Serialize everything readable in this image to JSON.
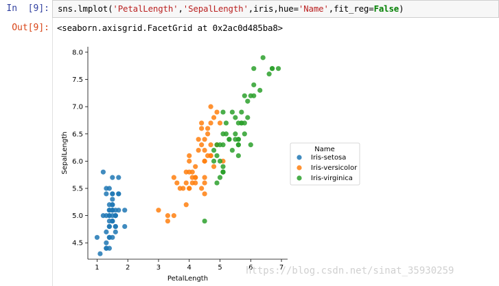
{
  "cell_in": {
    "prompt": "In  [9]:",
    "code_parts": [
      {
        "t": "sns.lmplot(",
        "c": "plain"
      },
      {
        "t": "'PetalLength'",
        "c": "str"
      },
      {
        "t": ",",
        "c": "plain"
      },
      {
        "t": "'SepalLength'",
        "c": "str"
      },
      {
        "t": ",iris,hue=",
        "c": "plain"
      },
      {
        "t": "'Name'",
        "c": "str"
      },
      {
        "t": ",fit_reg=",
        "c": "plain"
      },
      {
        "t": "False",
        "c": "kw"
      },
      {
        "t": ")",
        "c": "plain"
      }
    ]
  },
  "cell_out": {
    "prompt": "Out[9]:",
    "repr": "<seaborn.axisgrid.FacetGrid at 0x2ac0d485ba8>"
  },
  "watermark": "https://blog.csdn.net/sinat_35930259",
  "chart_data": {
    "type": "scatter",
    "xlabel": "PetalLength",
    "ylabel": "SepalLength",
    "xlim": [
      0.7,
      7.2
    ],
    "ylim": [
      4.2,
      8.1
    ],
    "xticks": [
      1,
      2,
      3,
      4,
      5,
      6,
      7
    ],
    "yticks": [
      4.5,
      5.0,
      5.5,
      6.0,
      6.5,
      7.0,
      7.5,
      8.0
    ],
    "legend": {
      "title": "Name",
      "placement": "right"
    },
    "series": [
      {
        "name": "Iris-setosa",
        "color": "#1f77b4",
        "points": [
          [
            1.4,
            5.1
          ],
          [
            1.4,
            4.9
          ],
          [
            1.3,
            4.7
          ],
          [
            1.5,
            4.6
          ],
          [
            1.4,
            5.0
          ],
          [
            1.7,
            5.4
          ],
          [
            1.4,
            4.6
          ],
          [
            1.5,
            5.0
          ],
          [
            1.4,
            4.4
          ],
          [
            1.5,
            4.9
          ],
          [
            1.5,
            5.4
          ],
          [
            1.6,
            4.8
          ],
          [
            1.4,
            4.8
          ],
          [
            1.1,
            4.3
          ],
          [
            1.2,
            5.8
          ],
          [
            1.5,
            5.7
          ],
          [
            1.3,
            5.4
          ],
          [
            1.4,
            5.1
          ],
          [
            1.7,
            5.7
          ],
          [
            1.5,
            5.1
          ],
          [
            1.7,
            5.4
          ],
          [
            1.5,
            5.1
          ],
          [
            1.0,
            4.6
          ],
          [
            1.7,
            5.1
          ],
          [
            1.9,
            4.8
          ],
          [
            1.6,
            5.0
          ],
          [
            1.6,
            5.0
          ],
          [
            1.5,
            5.2
          ],
          [
            1.4,
            5.2
          ],
          [
            1.6,
            4.7
          ],
          [
            1.6,
            4.8
          ],
          [
            1.5,
            5.4
          ],
          [
            1.5,
            5.2
          ],
          [
            1.4,
            5.5
          ],
          [
            1.5,
            4.9
          ],
          [
            1.2,
            5.0
          ],
          [
            1.3,
            5.5
          ],
          [
            1.5,
            4.9
          ],
          [
            1.3,
            4.4
          ],
          [
            1.5,
            5.1
          ],
          [
            1.3,
            5.0
          ],
          [
            1.3,
            4.5
          ],
          [
            1.3,
            4.4
          ],
          [
            1.6,
            5.0
          ],
          [
            1.9,
            5.1
          ],
          [
            1.4,
            4.8
          ],
          [
            1.6,
            5.1
          ],
          [
            1.4,
            4.6
          ],
          [
            1.5,
            5.3
          ],
          [
            1.4,
            5.0
          ]
        ]
      },
      {
        "name": "Iris-versicolor",
        "color": "#ff7f0e",
        "points": [
          [
            4.7,
            7.0
          ],
          [
            4.5,
            6.4
          ],
          [
            4.9,
            6.9
          ],
          [
            4.0,
            5.5
          ],
          [
            4.6,
            6.5
          ],
          [
            4.5,
            5.7
          ],
          [
            4.7,
            6.3
          ],
          [
            3.3,
            4.9
          ],
          [
            4.6,
            6.6
          ],
          [
            3.9,
            5.2
          ],
          [
            3.5,
            5.0
          ],
          [
            4.2,
            5.9
          ],
          [
            4.0,
            6.0
          ],
          [
            4.7,
            6.1
          ],
          [
            3.6,
            5.6
          ],
          [
            4.4,
            6.7
          ],
          [
            4.5,
            5.6
          ],
          [
            4.1,
            5.8
          ],
          [
            4.5,
            6.2
          ],
          [
            3.9,
            5.6
          ],
          [
            4.8,
            5.9
          ],
          [
            4.0,
            6.1
          ],
          [
            4.9,
            6.3
          ],
          [
            4.7,
            6.1
          ],
          [
            4.3,
            6.4
          ],
          [
            4.4,
            6.6
          ],
          [
            4.8,
            6.8
          ],
          [
            5.0,
            6.7
          ],
          [
            4.5,
            6.0
          ],
          [
            3.5,
            5.7
          ],
          [
            3.8,
            5.5
          ],
          [
            3.7,
            5.5
          ],
          [
            3.9,
            5.8
          ],
          [
            5.1,
            6.0
          ],
          [
            4.5,
            5.4
          ],
          [
            4.5,
            6.0
          ],
          [
            4.7,
            6.7
          ],
          [
            4.4,
            6.3
          ],
          [
            4.1,
            5.6
          ],
          [
            4.0,
            5.5
          ],
          [
            4.4,
            5.5
          ],
          [
            4.6,
            6.1
          ],
          [
            4.0,
            5.8
          ],
          [
            3.3,
            5.0
          ],
          [
            4.2,
            5.6
          ],
          [
            4.2,
            5.7
          ],
          [
            4.2,
            5.7
          ],
          [
            4.3,
            6.2
          ],
          [
            3.0,
            5.1
          ],
          [
            4.1,
            5.7
          ]
        ]
      },
      {
        "name": "Iris-virginica",
        "color": "#2ca02c",
        "points": [
          [
            6.0,
            6.3
          ],
          [
            5.1,
            5.8
          ],
          [
            5.9,
            7.1
          ],
          [
            5.6,
            6.3
          ],
          [
            5.8,
            6.5
          ],
          [
            6.6,
            7.6
          ],
          [
            4.5,
            4.9
          ],
          [
            6.3,
            7.3
          ],
          [
            5.8,
            6.7
          ],
          [
            6.1,
            7.2
          ],
          [
            5.1,
            6.5
          ],
          [
            5.3,
            6.4
          ],
          [
            5.5,
            6.8
          ],
          [
            5.0,
            5.7
          ],
          [
            5.1,
            5.8
          ],
          [
            5.3,
            6.4
          ],
          [
            5.5,
            6.5
          ],
          [
            6.7,
            7.7
          ],
          [
            6.9,
            7.7
          ],
          [
            5.0,
            6.0
          ],
          [
            5.7,
            6.9
          ],
          [
            4.9,
            5.6
          ],
          [
            6.7,
            7.7
          ],
          [
            4.9,
            6.3
          ],
          [
            5.7,
            6.7
          ],
          [
            6.0,
            7.2
          ],
          [
            4.8,
            6.2
          ],
          [
            4.9,
            6.1
          ],
          [
            5.6,
            6.4
          ],
          [
            5.8,
            7.2
          ],
          [
            6.1,
            7.4
          ],
          [
            6.4,
            7.9
          ],
          [
            5.6,
            6.4
          ],
          [
            5.1,
            6.3
          ],
          [
            5.6,
            6.1
          ],
          [
            6.1,
            7.7
          ],
          [
            5.6,
            6.3
          ],
          [
            5.5,
            6.4
          ],
          [
            4.8,
            6.0
          ],
          [
            5.4,
            6.9
          ],
          [
            5.6,
            6.7
          ],
          [
            5.1,
            6.9
          ],
          [
            5.1,
            5.8
          ],
          [
            5.9,
            6.8
          ],
          [
            5.7,
            6.7
          ],
          [
            5.2,
            6.7
          ],
          [
            5.0,
            6.3
          ],
          [
            5.2,
            6.5
          ],
          [
            5.4,
            6.2
          ],
          [
            5.1,
            5.9
          ]
        ]
      }
    ]
  }
}
